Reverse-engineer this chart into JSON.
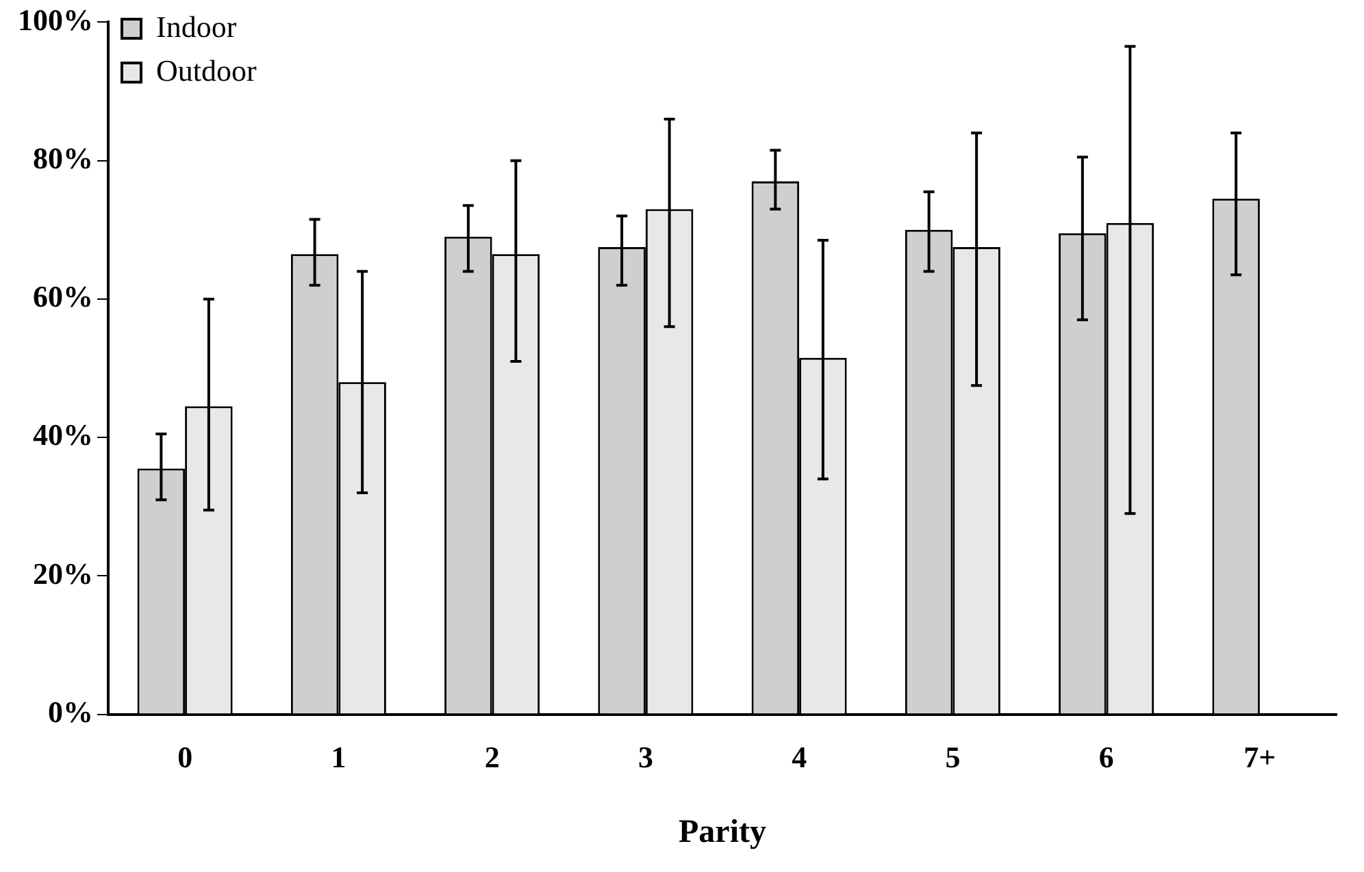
{
  "chart_data": {
    "type": "bar",
    "xlabel": "Parity",
    "categories": [
      "0",
      "1",
      "2",
      "3",
      "4",
      "5",
      "6",
      "7+"
    ],
    "series": [
      {
        "name": "Indoor",
        "color": "#cfcfcf",
        "values": [
          35.5,
          66.5,
          69,
          67.5,
          77,
          70,
          69.5,
          74.5
        ],
        "errors": [
          [
            31,
            40.5
          ],
          [
            62,
            71.5
          ],
          [
            64,
            73.5
          ],
          [
            62,
            72
          ],
          [
            73,
            81.5
          ],
          [
            64,
            75.5
          ],
          [
            57,
            80.5
          ],
          [
            63.5,
            84
          ]
        ]
      },
      {
        "name": "Outdoor",
        "color": "#e8e8e8",
        "values": [
          44.5,
          48,
          66.5,
          73,
          51.5,
          67.5,
          71,
          null
        ],
        "errors": [
          [
            29.5,
            60
          ],
          [
            32,
            64
          ],
          [
            51,
            80
          ],
          [
            56,
            86
          ],
          [
            34,
            68.5
          ],
          [
            47.5,
            84
          ],
          [
            29,
            96.5
          ],
          null
        ]
      }
    ],
    "ylim": [
      0,
      100
    ],
    "yticks": [
      {
        "value": 0,
        "label": "0%"
      },
      {
        "value": 20,
        "label": "20%"
      },
      {
        "value": 40,
        "label": "40%"
      },
      {
        "value": 60,
        "label": "60%"
      },
      {
        "value": 80,
        "label": "80%"
      },
      {
        "value": 100,
        "label": "100%"
      }
    ],
    "grid": false,
    "legend": "top left"
  }
}
